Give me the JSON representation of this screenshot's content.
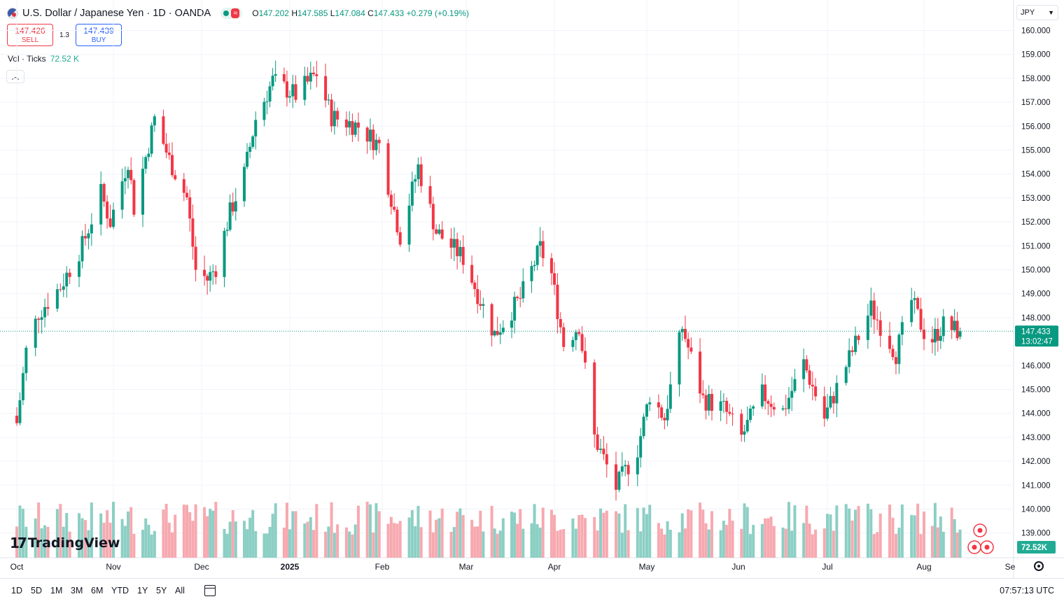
{
  "header": {
    "title": "U.S. Dollar / Japanese Yen · 1D · OANDA",
    "market_icon": "flag-icon",
    "ohlc": {
      "o_label": "O",
      "o": "147.202",
      "h_label": "H",
      "h": "147.585",
      "l_label": "L",
      "l": "147.084",
      "c_label": "C",
      "c": "147.433",
      "change": "+0.279 (+0.19%)"
    }
  },
  "trade": {
    "sell_price": "147.426",
    "sell_label": "SELL",
    "spread": "1.3",
    "buy_price": "147.439",
    "buy_label": "BUY"
  },
  "volume_legend": {
    "label": "Vol · Ticks",
    "value": "72.52 K"
  },
  "currency_select": {
    "value": "JPY"
  },
  "logo": {
    "mark": "17",
    "text": "TradingView"
  },
  "bottom_bar": {
    "ranges": [
      "1D",
      "5D",
      "1M",
      "3M",
      "6M",
      "YTD",
      "1Y",
      "5Y",
      "All"
    ],
    "clock": "07:57:13 UTC"
  },
  "colors": {
    "up": "#089981",
    "down": "#f23645",
    "vol_up": "#8ccfc4",
    "vol_down": "#f7a9b0",
    "grid": "#f0f3fa"
  },
  "chart_data": {
    "type": "candlestick",
    "symbol": "USDJPY",
    "interval": "1D",
    "ylim": [
      138.5,
      160.5
    ],
    "price_ticks": [
      "160.000",
      "159.000",
      "158.000",
      "157.000",
      "156.000",
      "155.000",
      "154.000",
      "153.000",
      "152.000",
      "151.000",
      "150.000",
      "149.000",
      "148.000",
      "146.000",
      "145.000",
      "144.000",
      "143.000",
      "142.000",
      "141.000",
      "140.000",
      "139.000"
    ],
    "last_price": "147.433",
    "countdown": "13:02:47",
    "volume_last": "72.52K",
    "x_ticks": [
      "Oct",
      "Nov",
      "Dec",
      "2025",
      "Feb",
      "Mar",
      "Apr",
      "May",
      "Jun",
      "Jul",
      "Aug",
      "Se"
    ],
    "anchors": [
      {
        "date": "Oct 01",
        "close": 143.6
      },
      {
        "date": "Oct 04",
        "close": 146.6
      },
      {
        "date": "Oct 08",
        "close": 148.2
      },
      {
        "date": "Oct 15",
        "close": 149.3
      },
      {
        "date": "Oct 22",
        "close": 151.0
      },
      {
        "date": "Oct 28",
        "close": 153.2
      },
      {
        "date": "Oct 31",
        "close": 152.0
      },
      {
        "date": "Nov 06",
        "close": 154.6
      },
      {
        "date": "Nov 08",
        "close": 152.6
      },
      {
        "date": "Nov 15",
        "close": 156.3
      },
      {
        "date": "Nov 20",
        "close": 154.6
      },
      {
        "date": "Nov 26",
        "close": 153.0
      },
      {
        "date": "Nov 29",
        "close": 150.0
      },
      {
        "date": "Dec 03",
        "close": 149.6
      },
      {
        "date": "Dec 06",
        "close": 150.1
      },
      {
        "date": "Dec 11",
        "close": 152.4
      },
      {
        "date": "Dec 16",
        "close": 154.0
      },
      {
        "date": "Dec 20",
        "close": 156.3
      },
      {
        "date": "Dec 26",
        "close": 157.9
      },
      {
        "date": "Jan 03",
        "close": 157.3
      },
      {
        "date": "Jan 10",
        "close": 158.2
      },
      {
        "date": "Jan 15",
        "close": 156.4
      },
      {
        "date": "Jan 24",
        "close": 156.0
      },
      {
        "date": "Jan 31",
        "close": 155.2
      },
      {
        "date": "Feb 07",
        "close": 151.4
      },
      {
        "date": "Feb 13",
        "close": 154.3
      },
      {
        "date": "Feb 19",
        "close": 151.6
      },
      {
        "date": "Feb 28",
        "close": 150.5
      },
      {
        "date": "Mar 04",
        "close": 149.3
      },
      {
        "date": "Mar 11",
        "close": 147.3
      },
      {
        "date": "Mar 20",
        "close": 148.8
      },
      {
        "date": "Mar 27",
        "close": 150.9
      },
      {
        "date": "Mar 31",
        "close": 149.8
      },
      {
        "date": "Apr 04",
        "close": 146.9
      },
      {
        "date": "Apr 09",
        "close": 147.7
      },
      {
        "date": "Apr 14",
        "close": 143.0
      },
      {
        "date": "Apr 21",
        "close": 140.9
      },
      {
        "date": "Apr 28",
        "close": 142.5
      },
      {
        "date": "May 02",
        "close": 144.8
      },
      {
        "date": "May 07",
        "close": 143.8
      },
      {
        "date": "May 13",
        "close": 147.6
      },
      {
        "date": "May 20",
        "close": 144.6
      },
      {
        "date": "May 27",
        "close": 144.2
      },
      {
        "date": "Jun 02",
        "close": 143.0
      },
      {
        "date": "Jun 09",
        "close": 144.8
      },
      {
        "date": "Jun 16",
        "close": 144.1
      },
      {
        "date": "Jun 23",
        "close": 146.1
      },
      {
        "date": "Jun 30",
        "close": 143.8
      },
      {
        "date": "Jul 07",
        "close": 146.0
      },
      {
        "date": "Jul 15",
        "close": 148.4
      },
      {
        "date": "Jul 23",
        "close": 146.5
      },
      {
        "date": "Jul 28",
        "close": 148.7
      },
      {
        "date": "Aug 01",
        "close": 147.4
      },
      {
        "date": "Aug 04",
        "close": 147.1
      },
      {
        "date": "Aug 08",
        "close": 147.7
      },
      {
        "date": "Aug 14",
        "close": 147.4
      }
    ]
  }
}
